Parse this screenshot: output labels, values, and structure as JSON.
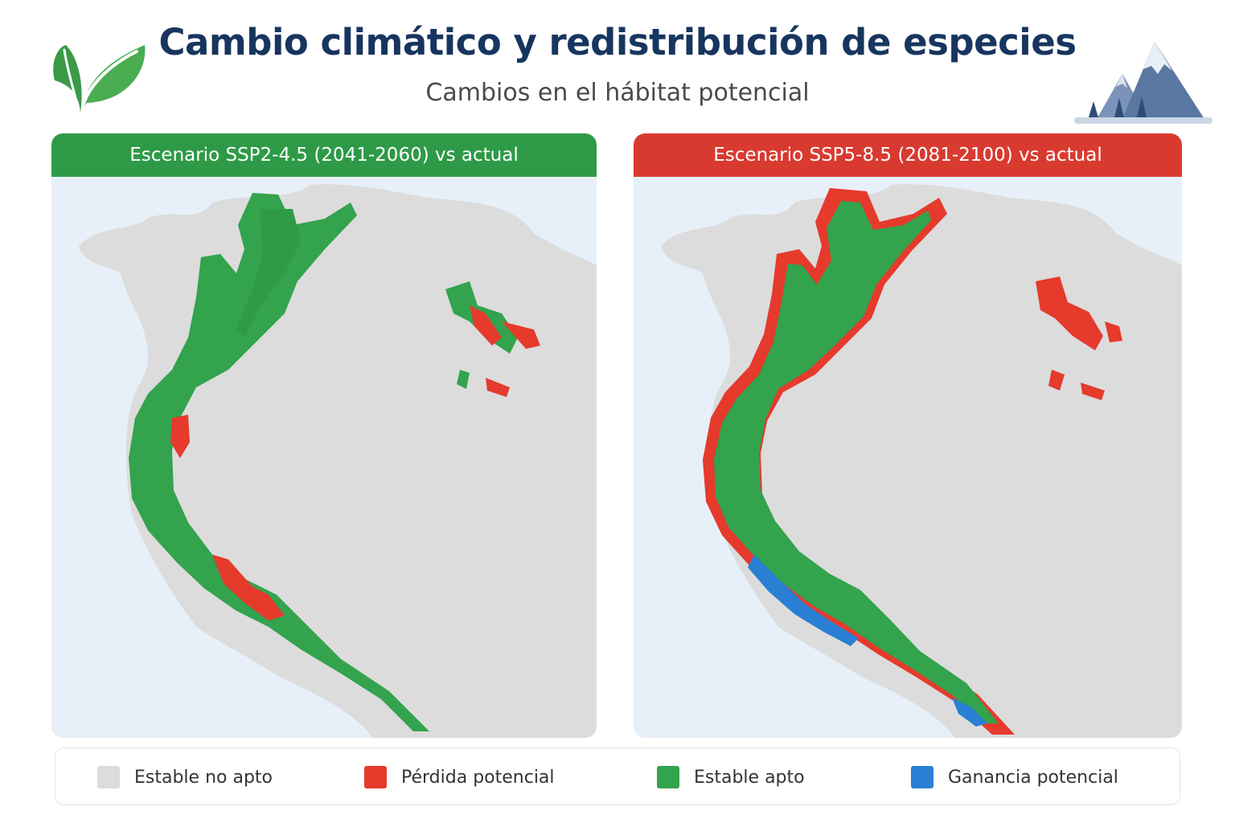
{
  "header": {
    "title": "Cambio climático y redistribución de especies",
    "subtitle": "Cambios en el hábitat potencial",
    "logo_icon": "leaf-icon",
    "decoration_icon": "mountains-icon"
  },
  "panels": [
    {
      "label": "Escenario SSP2-4.5 (2041-2060) vs actual",
      "accent": "#2e9a47"
    },
    {
      "label": "Escenario SSP5-8.5 (2081-2100) vs actual",
      "accent": "#d93a30"
    }
  ],
  "legend": [
    {
      "label": "Estable no apto",
      "color": "#dcdcdc"
    },
    {
      "label": "Pérdida potencial",
      "color": "#e53a2c"
    },
    {
      "label": "Estable apto",
      "color": "#33a34d"
    },
    {
      "label": "Ganancia potencial",
      "color": "#2a7fd4"
    }
  ],
  "colors": {
    "ocean": "#e7f0f8",
    "land": "#dcdcdc",
    "title": "#17355f"
  }
}
